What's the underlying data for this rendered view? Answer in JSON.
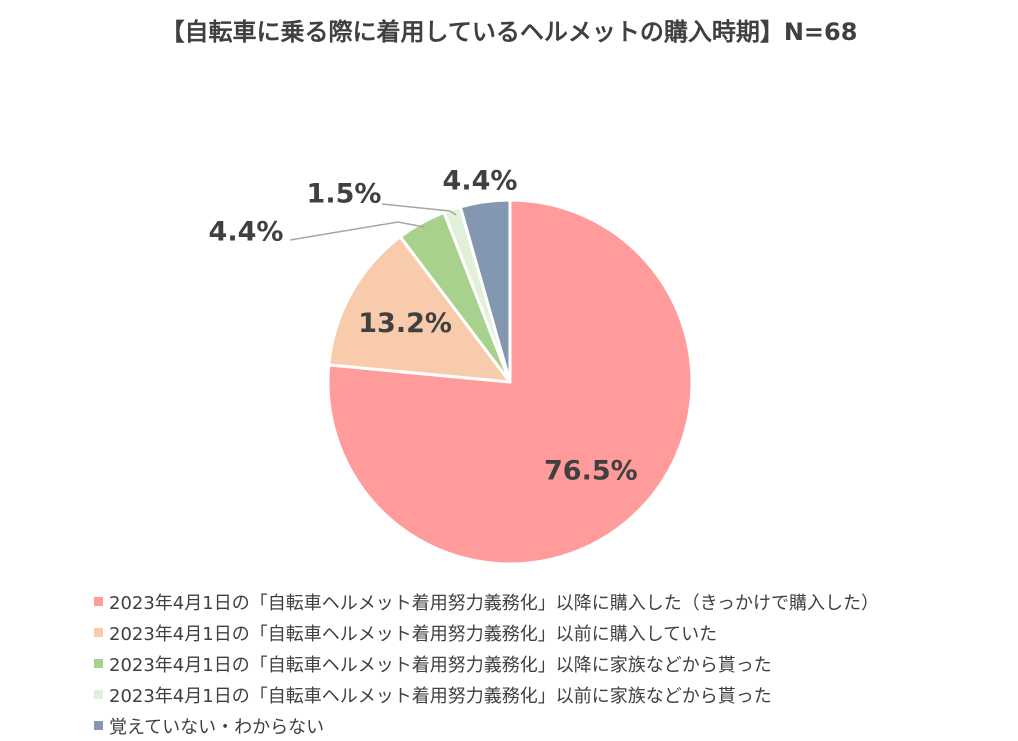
{
  "chart_data": {
    "type": "pie",
    "title": "【自転車に乗る際に着用しているヘルメットの購入時期】N=68",
    "slices": [
      {
        "label": "2023年4月1日の「自転車ヘルメット着用努力義務化」以降に購入した（きっかけで購入した）",
        "value": 76.5,
        "value_label": "76.5%",
        "color": "#FF9B9B"
      },
      {
        "label": "2023年4月1日の「自転車ヘルメット着用努力義務化」以前に購入していた",
        "value": 13.2,
        "value_label": "13.2%",
        "color": "#F7CBAC"
      },
      {
        "label": "2023年4月1日の「自転車ヘルメット着用努力義務化」以降に家族などから貰った",
        "value": 4.4,
        "value_label": "4.4%",
        "color": "#A9D18E"
      },
      {
        "label": "2023年4月1日の「自転車ヘルメット着用努力義務化」以前に家族などから貰った",
        "value": 1.5,
        "value_label": "1.5%",
        "color": "#E2F0D9"
      },
      {
        "label": "覚えていない・わからない",
        "value": 4.4,
        "value_label": "4.4%",
        "color": "#8497B0"
      }
    ],
    "legend_position": "bottom"
  }
}
